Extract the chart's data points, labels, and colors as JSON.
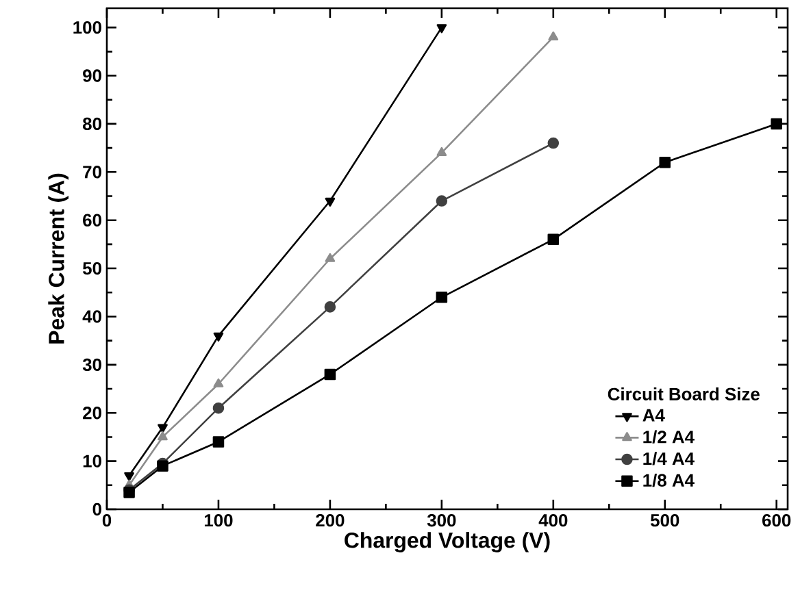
{
  "chart_data": {
    "type": "line",
    "xlabel": "Charged Voltage (V)",
    "ylabel": "Peak Current (A)",
    "legend_title": "Circuit Board Size",
    "legend": "bottom right",
    "line_style": "solid",
    "xlim": [
      0,
      610
    ],
    "ylim": [
      0,
      104
    ],
    "xticks": [
      0,
      100,
      200,
      300,
      400,
      500,
      600
    ],
    "yticks": [
      0,
      10,
      20,
      30,
      40,
      50,
      60,
      70,
      80,
      90,
      100
    ],
    "series": [
      {
        "name": "A4",
        "color": "#000000",
        "marker": "triangle_down",
        "x": [
          20,
          50,
          100,
          200,
          300
        ],
        "values": [
          7,
          17,
          36,
          64,
          100
        ]
      },
      {
        "name": "1/2 A4",
        "color": "#8c8c8c",
        "marker": "triangle",
        "x": [
          20,
          50,
          100,
          200,
          300,
          400
        ],
        "values": [
          5,
          15,
          26,
          52,
          74,
          98
        ]
      },
      {
        "name": "1/4 A4",
        "color": "#404040",
        "marker": "circle",
        "x": [
          20,
          50,
          100,
          200,
          300,
          400
        ],
        "values": [
          4,
          9.5,
          21,
          42,
          64,
          76
        ]
      },
      {
        "name": "1/8 A4",
        "color": "#000000",
        "marker": "square",
        "x": [
          20,
          50,
          100,
          200,
          300,
          400,
          500,
          600
        ],
        "values": [
          3.5,
          9,
          14,
          28,
          44,
          56,
          72,
          80
        ]
      }
    ]
  }
}
